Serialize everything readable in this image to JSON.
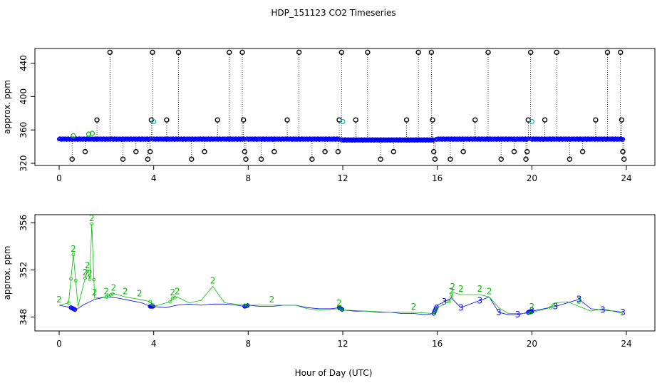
{
  "title": "HDP_151123  CO2 Timeseries",
  "xlabel": "Hour of Day (UTC)",
  "chart_data": [
    {
      "type": "scatter",
      "panel": "top",
      "ylabel": "approx. ppm",
      "xlim": [
        0,
        24
      ],
      "ylim": [
        320,
        455
      ],
      "x_ticks": [
        0,
        4,
        8,
        12,
        16,
        20,
        24
      ],
      "y_ticks": [
        320,
        360,
        400,
        440
      ],
      "grid": false,
      "legend": "none",
      "colors": {
        "baseline": "#0000ff",
        "outliers": "#000000",
        "secondary": "#00c0c0",
        "green": "#00c000"
      },
      "baseline_segments": [
        [
          0.0,
          3.85,
          349
        ],
        [
          3.95,
          7.85,
          349
        ],
        [
          7.95,
          11.85,
          349
        ],
        [
          11.95,
          15.85,
          348
        ],
        [
          15.95,
          19.85,
          349
        ],
        [
          19.95,
          23.85,
          349
        ]
      ],
      "outlier_points": [
        {
          "x": 0.55,
          "y": 325
        },
        {
          "x": 1.1,
          "y": 334
        },
        {
          "x": 1.6,
          "y": 372
        },
        {
          "x": 2.15,
          "y": 453
        },
        {
          "x": 2.7,
          "y": 325
        },
        {
          "x": 3.25,
          "y": 334
        },
        {
          "x": 3.75,
          "y": 325
        },
        {
          "x": 3.85,
          "y": 334
        },
        {
          "x": 3.9,
          "y": 372
        },
        {
          "x": 3.95,
          "y": 453
        },
        {
          "x": 4.55,
          "y": 372
        },
        {
          "x": 5.05,
          "y": 453
        },
        {
          "x": 5.6,
          "y": 325
        },
        {
          "x": 6.15,
          "y": 334
        },
        {
          "x": 6.7,
          "y": 372
        },
        {
          "x": 7.2,
          "y": 453
        },
        {
          "x": 7.75,
          "y": 453
        },
        {
          "x": 7.8,
          "y": 372
        },
        {
          "x": 7.85,
          "y": 334
        },
        {
          "x": 7.9,
          "y": 325
        },
        {
          "x": 8.55,
          "y": 325
        },
        {
          "x": 9.1,
          "y": 334
        },
        {
          "x": 9.65,
          "y": 372
        },
        {
          "x": 10.15,
          "y": 453
        },
        {
          "x": 10.7,
          "y": 325
        },
        {
          "x": 11.25,
          "y": 334
        },
        {
          "x": 11.8,
          "y": 334
        },
        {
          "x": 11.85,
          "y": 372
        },
        {
          "x": 11.95,
          "y": 453
        },
        {
          "x": 12.55,
          "y": 372
        },
        {
          "x": 13.05,
          "y": 453
        },
        {
          "x": 13.6,
          "y": 325
        },
        {
          "x": 14.15,
          "y": 334
        },
        {
          "x": 14.7,
          "y": 372
        },
        {
          "x": 15.2,
          "y": 453
        },
        {
          "x": 15.75,
          "y": 453
        },
        {
          "x": 15.8,
          "y": 372
        },
        {
          "x": 15.85,
          "y": 334
        },
        {
          "x": 15.9,
          "y": 325
        },
        {
          "x": 16.55,
          "y": 325
        },
        {
          "x": 17.1,
          "y": 334
        },
        {
          "x": 17.6,
          "y": 372
        },
        {
          "x": 18.15,
          "y": 453
        },
        {
          "x": 18.7,
          "y": 325
        },
        {
          "x": 19.25,
          "y": 334
        },
        {
          "x": 19.75,
          "y": 325
        },
        {
          "x": 19.8,
          "y": 334
        },
        {
          "x": 19.85,
          "y": 372
        },
        {
          "x": 19.95,
          "y": 453
        },
        {
          "x": 20.55,
          "y": 372
        },
        {
          "x": 21.05,
          "y": 453
        },
        {
          "x": 21.6,
          "y": 325
        },
        {
          "x": 22.15,
          "y": 334
        },
        {
          "x": 22.7,
          "y": 372
        },
        {
          "x": 23.2,
          "y": 453
        },
        {
          "x": 23.75,
          "y": 453
        },
        {
          "x": 23.8,
          "y": 372
        },
        {
          "x": 23.85,
          "y": 334
        },
        {
          "x": 23.9,
          "y": 325
        }
      ],
      "secondary_points": [
        {
          "x": 0.6,
          "y": 353
        },
        {
          "x": 1.25,
          "y": 355
        },
        {
          "x": 1.4,
          "y": 356
        },
        {
          "x": 4.0,
          "y": 370
        },
        {
          "x": 12.0,
          "y": 370
        },
        {
          "x": 20.0,
          "y": 370
        }
      ]
    },
    {
      "type": "scatter",
      "panel": "bottom",
      "ylabel": "approx. ppm",
      "xlim": [
        0,
        24
      ],
      "ylim": [
        347,
        356.5
      ],
      "x_ticks": [
        0,
        4,
        8,
        12,
        16,
        20,
        24
      ],
      "y_ticks": [
        348,
        352,
        356
      ],
      "grid": false,
      "legend": "none",
      "colors": {
        "series_3": "#0000ff",
        "series_2": "#00c000"
      },
      "series": [
        {
          "marker_label": "3",
          "color": "#0000ff",
          "points": [
            [
              0.0,
              349.0
            ],
            [
              0.5,
              348.8
            ],
            [
              0.7,
              348.6
            ],
            [
              1.0,
              349.0
            ],
            [
              1.5,
              349.5
            ],
            [
              2.0,
              349.7
            ],
            [
              2.5,
              349.6
            ],
            [
              3.0,
              349.4
            ],
            [
              3.5,
              349.2
            ],
            [
              3.85,
              348.9
            ],
            [
              4.0,
              348.9
            ],
            [
              4.5,
              348.8
            ],
            [
              5.0,
              349.0
            ],
            [
              5.5,
              349.1
            ],
            [
              6.0,
              349.0
            ],
            [
              6.5,
              349.1
            ],
            [
              7.0,
              349.1
            ],
            [
              7.5,
              349.0
            ],
            [
              7.85,
              348.9
            ],
            [
              8.0,
              349.0
            ],
            [
              8.5,
              348.9
            ],
            [
              9.0,
              348.9
            ],
            [
              9.5,
              349.0
            ],
            [
              10.0,
              349.0
            ],
            [
              10.5,
              348.8
            ],
            [
              11.0,
              348.7
            ],
            [
              11.5,
              348.7
            ],
            [
              11.85,
              348.8
            ],
            [
              12.0,
              348.6
            ],
            [
              12.5,
              348.5
            ],
            [
              13.0,
              348.5
            ],
            [
              13.5,
              348.4
            ],
            [
              14.0,
              348.4
            ],
            [
              14.5,
              348.3
            ],
            [
              15.0,
              348.3
            ],
            [
              15.5,
              348.2
            ],
            [
              15.85,
              348.3
            ],
            [
              16.0,
              349.0
            ],
            [
              16.3,
              349.3
            ],
            [
              16.6,
              349.6
            ],
            [
              17.0,
              348.8
            ],
            [
              17.4,
              349.1
            ],
            [
              17.8,
              349.4
            ],
            [
              18.2,
              349.7
            ],
            [
              18.6,
              348.4
            ],
            [
              19.0,
              348.2
            ],
            [
              19.4,
              348.2
            ],
            [
              19.85,
              348.4
            ],
            [
              20.0,
              348.5
            ],
            [
              20.5,
              348.7
            ],
            [
              21.0,
              348.9
            ],
            [
              21.5,
              349.2
            ],
            [
              22.0,
              349.5
            ],
            [
              22.5,
              348.7
            ],
            [
              23.0,
              348.6
            ],
            [
              23.5,
              348.5
            ],
            [
              23.85,
              348.4
            ]
          ]
        },
        {
          "marker_label": "2",
          "color": "#00c000",
          "points": [
            [
              0.0,
              349.0
            ],
            [
              0.4,
              349.2
            ],
            [
              0.6,
              353.3
            ],
            [
              0.8,
              348.9
            ],
            [
              1.1,
              351.3
            ],
            [
              1.2,
              351.9
            ],
            [
              1.3,
              351.2
            ],
            [
              1.38,
              355.9
            ],
            [
              1.5,
              349.6
            ],
            [
              2.0,
              349.7
            ],
            [
              2.3,
              350.0
            ],
            [
              2.8,
              349.7
            ],
            [
              3.4,
              349.5
            ],
            [
              3.85,
              349.3
            ],
            [
              4.0,
              348.9
            ],
            [
              4.7,
              349.3
            ],
            [
              4.8,
              349.6
            ],
            [
              5.0,
              349.7
            ],
            [
              5.5,
              349.2
            ],
            [
              6.0,
              349.4
            ],
            [
              6.5,
              350.6
            ],
            [
              7.0,
              349.2
            ],
            [
              7.85,
              349.0
            ],
            [
              8.0,
              349.0
            ],
            [
              9.0,
              349.0
            ],
            [
              10.0,
              349.0
            ],
            [
              10.5,
              348.7
            ],
            [
              11.0,
              348.6
            ],
            [
              11.85,
              348.7
            ],
            [
              12.0,
              348.6
            ],
            [
              13.0,
              348.5
            ],
            [
              14.0,
              348.4
            ],
            [
              15.0,
              348.4
            ],
            [
              15.85,
              348.3
            ],
            [
              16.0,
              348.8
            ],
            [
              16.5,
              349.3
            ],
            [
              16.6,
              349.7
            ],
            [
              16.65,
              350.1
            ],
            [
              17.0,
              349.9
            ],
            [
              17.8,
              349.9
            ],
            [
              18.2,
              349.7
            ],
            [
              18.6,
              348.8
            ],
            [
              19.0,
              348.3
            ],
            [
              19.85,
              348.3
            ],
            [
              20.0,
              348.4
            ],
            [
              20.8,
              348.8
            ],
            [
              21.0,
              349.2
            ],
            [
              21.5,
              349.3
            ],
            [
              22.0,
              348.9
            ],
            [
              22.5,
              348.5
            ],
            [
              23.0,
              348.7
            ],
            [
              23.85,
              348.3
            ]
          ]
        }
      ]
    }
  ]
}
